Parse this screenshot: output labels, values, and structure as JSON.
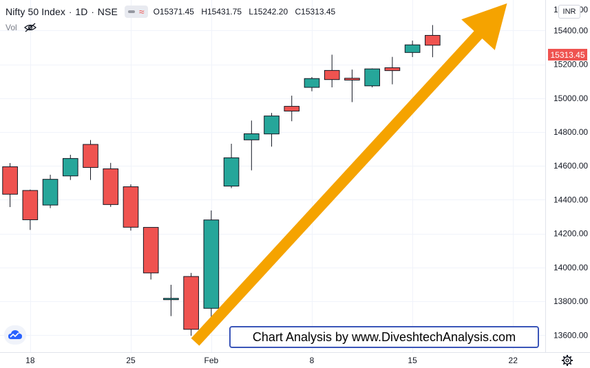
{
  "legend": {
    "title": "Nifty 50 Index",
    "interval": "1D",
    "exchange": "NSE",
    "ohlc": [
      {
        "key": "O",
        "value": "15371.45"
      },
      {
        "key": "H",
        "value": "15431.75"
      },
      {
        "key": "L",
        "value": "15242.20"
      },
      {
        "key": "C",
        "value": "15313.45"
      }
    ],
    "volume_label": "Vol",
    "volume_icon": "eye-off-icon"
  },
  "currency": "INR",
  "last_price_label": "15313.45",
  "watermark_text": "Chart Analysis by www.DiveshtechAnalysis.com",
  "colors": {
    "up": "#26a69a",
    "down": "#ef5350",
    "arrow": "#f5a300",
    "watermark_border": "#3a55b8"
  },
  "chart_data": {
    "type": "candlestick",
    "title": "Nifty 50 Index",
    "ylim": [
      13500,
      15580
    ],
    "y_ticks": [
      13600,
      13800,
      14000,
      14200,
      14400,
      14600,
      14800,
      15000,
      15200,
      15400
    ],
    "y_tick_labels": [
      "13600.00",
      "13800.00",
      "14000.00",
      "14200.00",
      "14400.00",
      "14600.00",
      "14800.00",
      "15000.00",
      "15200.00",
      "15400.00"
    ],
    "top_partial_label": "15600.00",
    "x_ticks": [
      {
        "index": 1,
        "label": "18"
      },
      {
        "index": 6,
        "label": "25"
      },
      {
        "index": 10,
        "label": "Feb"
      },
      {
        "index": 15,
        "label": "8"
      },
      {
        "index": 20,
        "label": "15"
      },
      {
        "index": 25,
        "label": "22"
      }
    ],
    "x_index_range": [
      -0.5,
      26.6
    ],
    "candles": [
      {
        "i": 0,
        "o": 14595,
        "h": 14617,
        "l": 14357,
        "c": 14433
      },
      {
        "i": 1,
        "o": 14455,
        "h": 14460,
        "l": 14222,
        "c": 14282
      },
      {
        "i": 2,
        "o": 14369,
        "h": 14548,
        "l": 14351,
        "c": 14521
      },
      {
        "i": 3,
        "o": 14541,
        "h": 14666,
        "l": 14517,
        "c": 14644
      },
      {
        "i": 4,
        "o": 14727,
        "h": 14753,
        "l": 14517,
        "c": 14591
      },
      {
        "i": 5,
        "o": 14583,
        "h": 14618,
        "l": 14358,
        "c": 14372
      },
      {
        "i": 6,
        "o": 14477,
        "h": 14491,
        "l": 14218,
        "c": 14238
      },
      {
        "i": 7,
        "o": 14237,
        "h": 14237,
        "l": 13929,
        "c": 13968
      },
      {
        "i": 8,
        "o": 13810,
        "h": 13898,
        "l": 13713,
        "c": 13818
      },
      {
        "i": 9,
        "o": 13947,
        "h": 13968,
        "l": 13597,
        "c": 13635
      },
      {
        "i": 10,
        "o": 13759,
        "h": 14337,
        "l": 13662,
        "c": 14281
      },
      {
        "i": 11,
        "o": 14481,
        "h": 14731,
        "l": 14469,
        "c": 14648
      },
      {
        "i": 12,
        "o": 14754,
        "h": 14868,
        "l": 14574,
        "c": 14790
      },
      {
        "i": 13,
        "o": 14789,
        "h": 14913,
        "l": 14714,
        "c": 14895
      },
      {
        "i": 14,
        "o": 14952,
        "h": 15015,
        "l": 14864,
        "c": 14924
      },
      {
        "i": 15,
        "o": 15064,
        "h": 15125,
        "l": 15041,
        "c": 15116
      },
      {
        "i": 16,
        "o": 15164,
        "h": 15257,
        "l": 15064,
        "c": 15110
      },
      {
        "i": 17,
        "o": 15118,
        "h": 15169,
        "l": 14977,
        "c": 15107
      },
      {
        "i": 18,
        "o": 15073,
        "h": 15176,
        "l": 15064,
        "c": 15173
      },
      {
        "i": 19,
        "o": 15180,
        "h": 15244,
        "l": 15082,
        "c": 15163
      },
      {
        "i": 20,
        "o": 15270,
        "h": 15340,
        "l": 15243,
        "c": 15315
      },
      {
        "i": 21,
        "o": 15371,
        "h": 15432,
        "l": 15242,
        "c": 15313
      }
    ],
    "annotation": {
      "type": "arrow",
      "from": {
        "i": 9.2,
        "v": 13560
      },
      "to": {
        "i": 24.7,
        "v": 15560
      }
    },
    "grid": true,
    "axis_position": "right"
  }
}
